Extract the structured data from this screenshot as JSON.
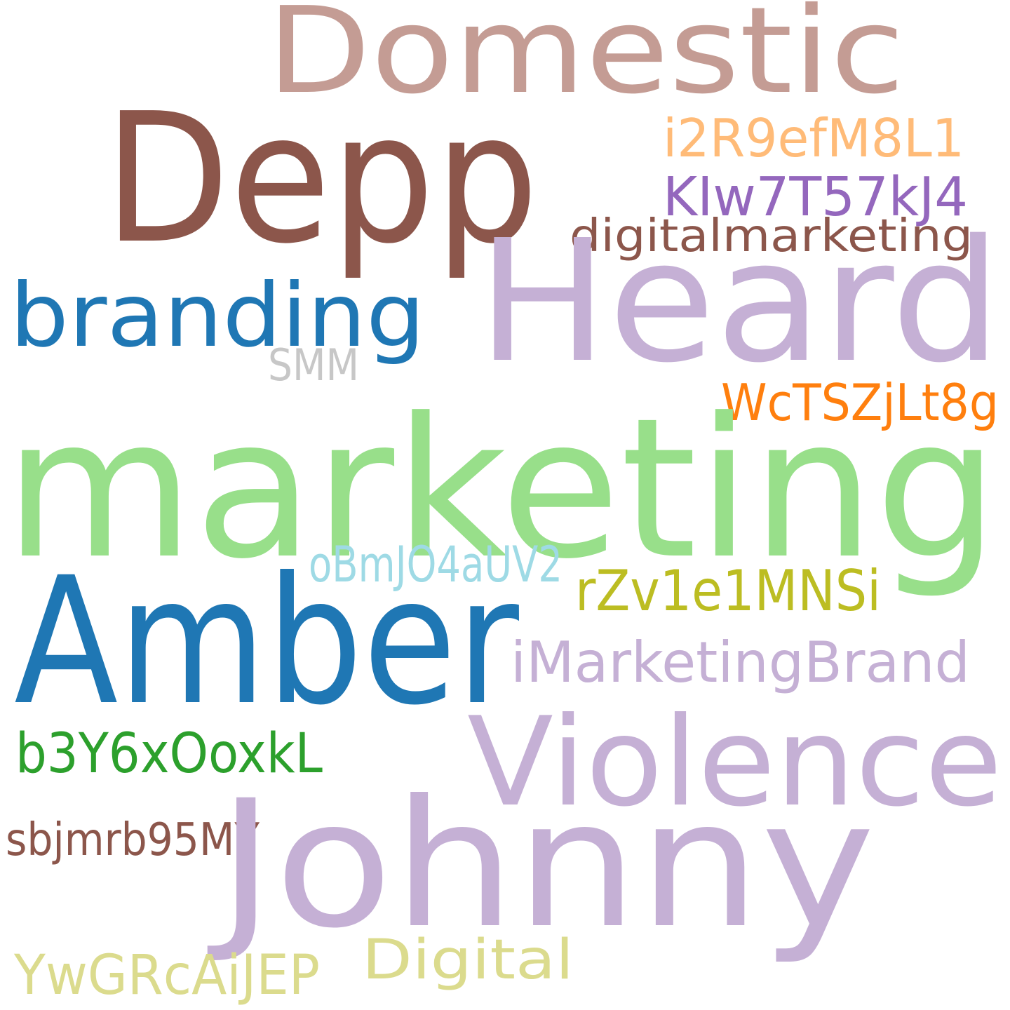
{
  "background": "#ffffff",
  "words": [
    {
      "text": "Domestic",
      "color": "#c49c94"
    },
    {
      "text": "Depp",
      "color": "#8c564b"
    },
    {
      "text": "i2R9efM8L1",
      "color": "#ffbb78"
    },
    {
      "text": "KIw7T57kJ4",
      "color": "#9467bd"
    },
    {
      "text": "digitalmarketing",
      "color": "#8c564b"
    },
    {
      "text": "Heard",
      "color": "#c5b0d5"
    },
    {
      "text": "branding",
      "color": "#1f77b4"
    },
    {
      "text": "SMM",
      "color": "#c7c7c7"
    },
    {
      "text": "WcTSZjLt8g",
      "color": "#ff7f0e"
    },
    {
      "text": "marketing",
      "color": "#98df8a"
    },
    {
      "text": "oBmJO4aUV2",
      "color": "#9edae5"
    },
    {
      "text": "rZv1e1MNSi",
      "color": "#bcbd22"
    },
    {
      "text": "Amber",
      "color": "#1f77b4"
    },
    {
      "text": "iMarketingBrand",
      "color": "#c5b0d5"
    },
    {
      "text": "Violence",
      "color": "#c5b0d5"
    },
    {
      "text": "b3Y6xOoxkL",
      "color": "#2ca02c"
    },
    {
      "text": "sbjmrb95MY",
      "color": "#8c564b"
    },
    {
      "text": "Johnny",
      "color": "#c5b0d5"
    },
    {
      "text": "Digital",
      "color": "#dbdb8d"
    },
    {
      "text": "YwGRcAiJEP",
      "color": "#dbdb8d"
    }
  ]
}
